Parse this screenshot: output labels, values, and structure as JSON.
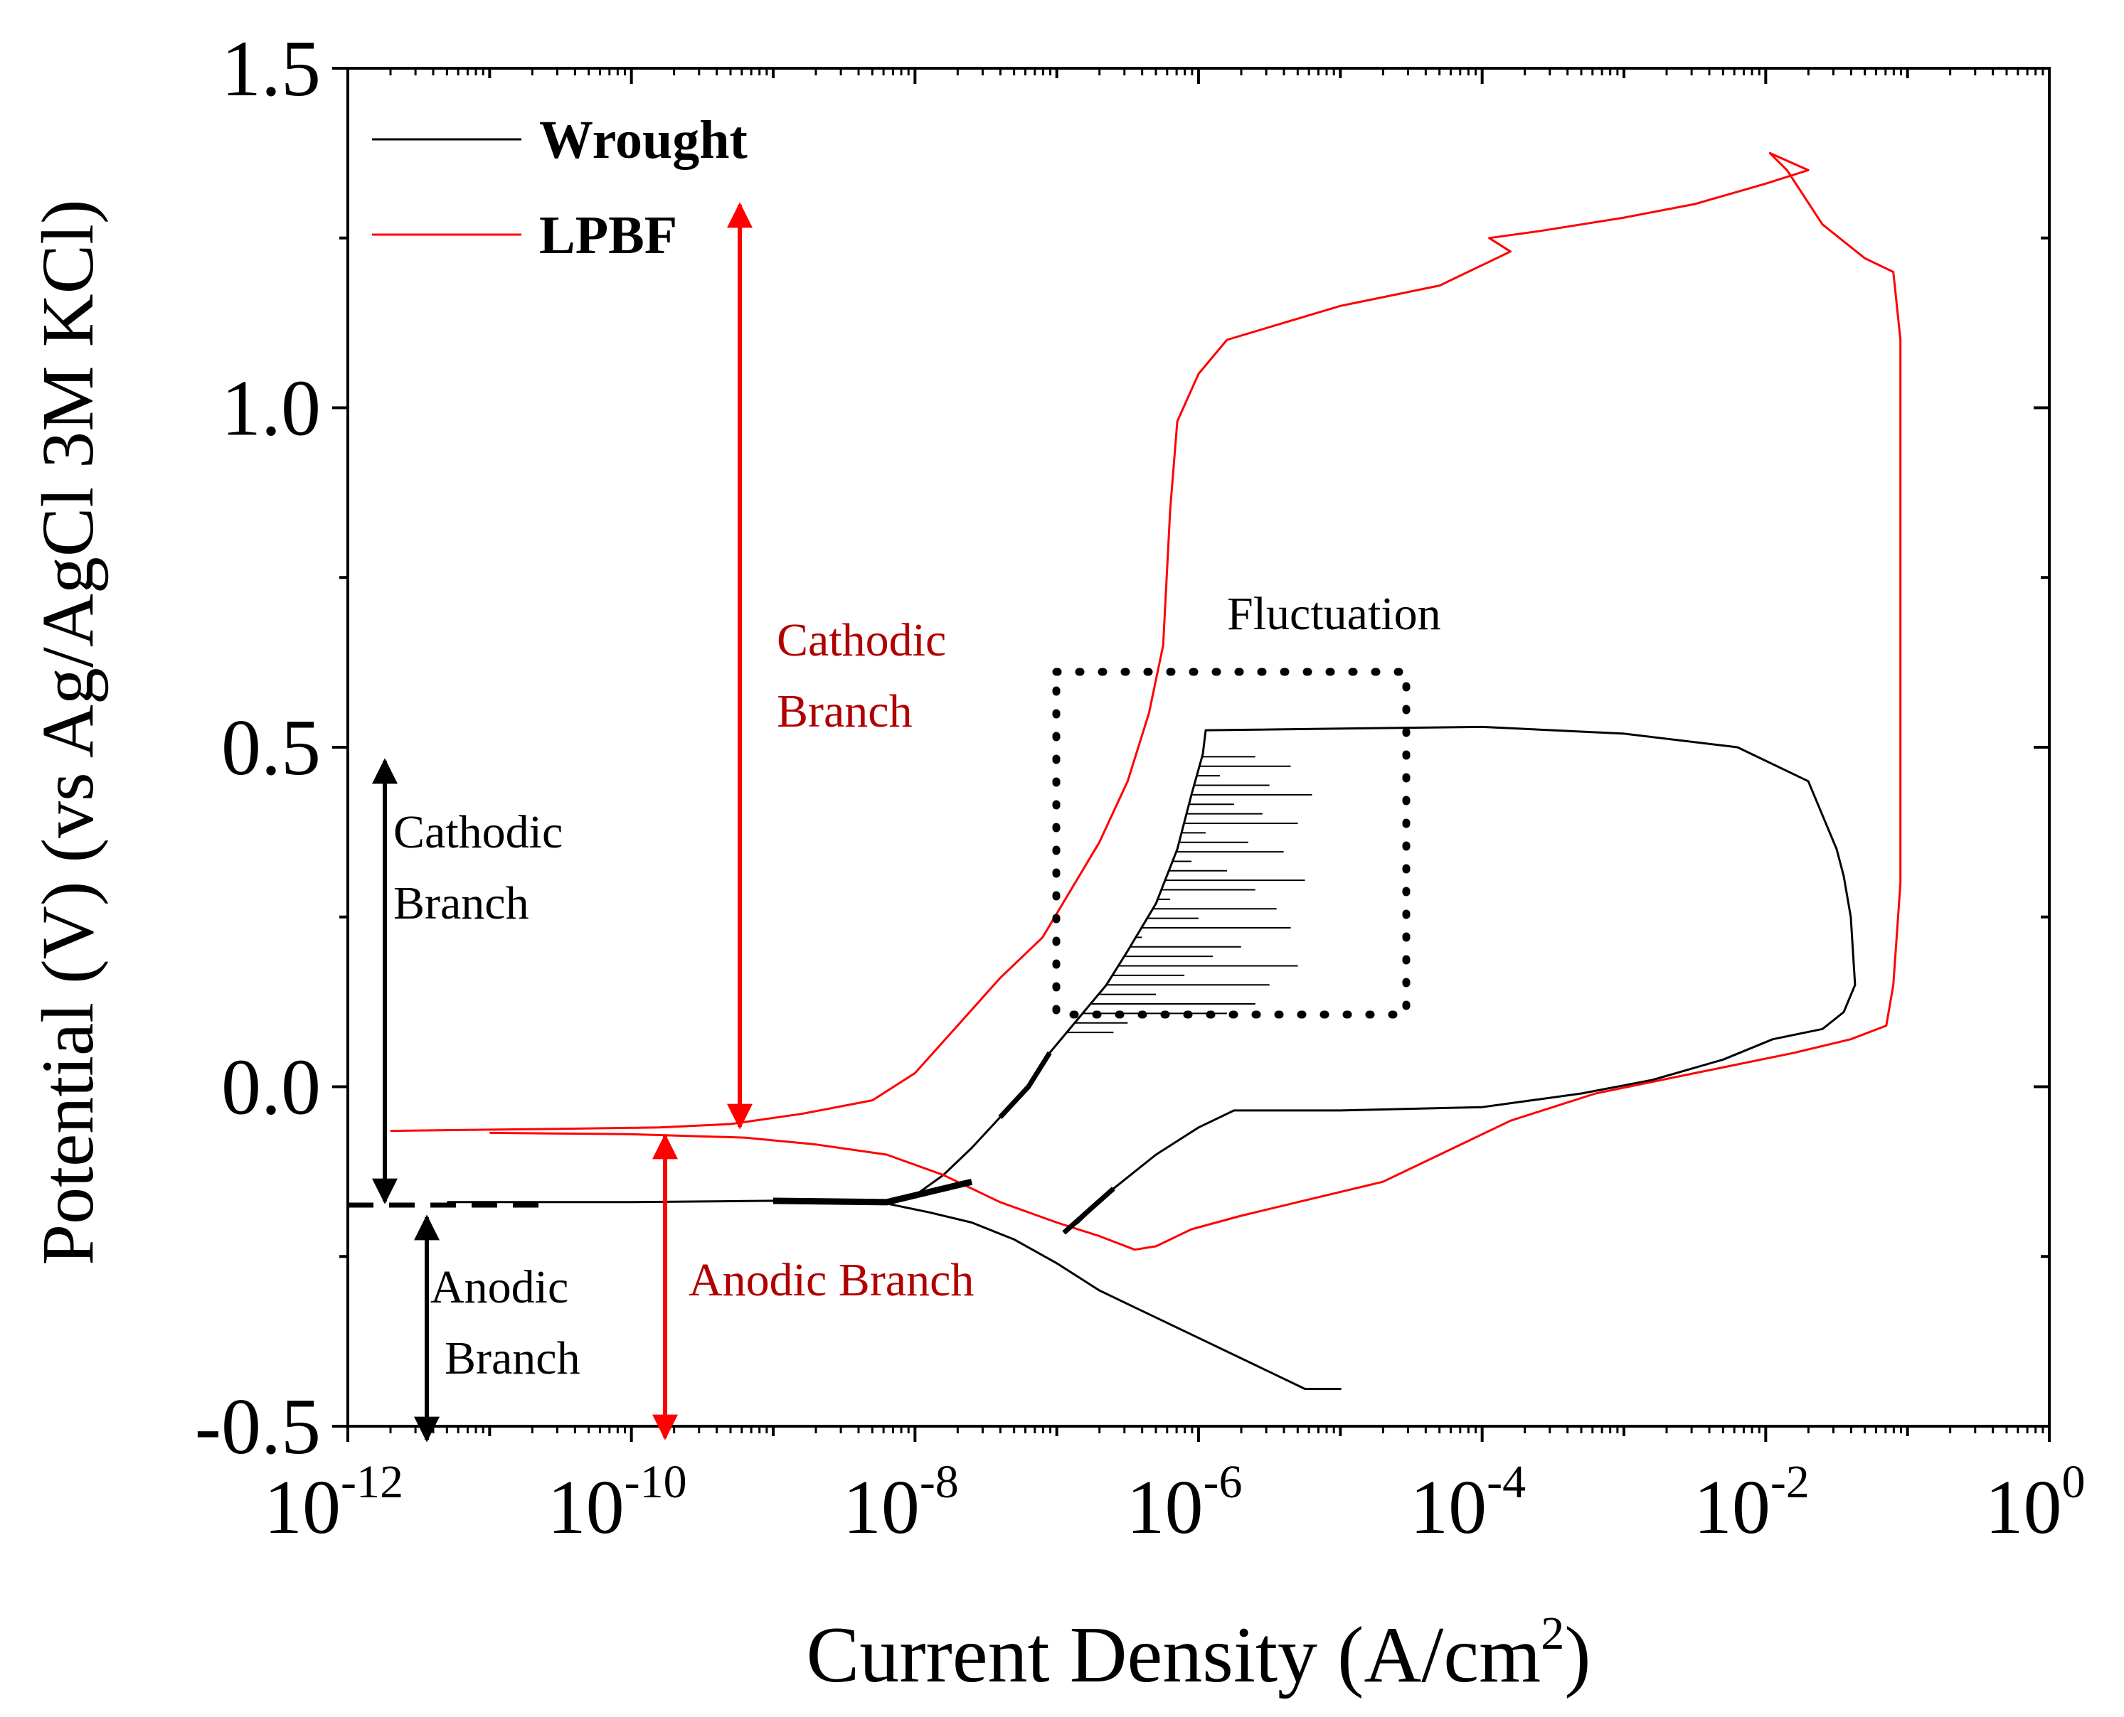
{
  "chart_data": {
    "type": "line",
    "xscale": "log",
    "xlim_exponent": [
      -12,
      0
    ],
    "ylim": [
      -0.5,
      1.5
    ],
    "xlabel": "Current Density (A/cm",
    "xlabel_sup": "2",
    "xlabel_end": ")",
    "ylabel": "Potential (V) (vs Ag/AgCl 3M KCl)",
    "y_ticks": [
      {
        "value": -0.5,
        "label": "-0.5"
      },
      {
        "value": 0.0,
        "label": "0.0"
      },
      {
        "value": 0.5,
        "label": "0.5"
      },
      {
        "value": 1.0,
        "label": "1.0"
      },
      {
        "value": 1.5,
        "label": "1.5"
      }
    ],
    "x_ticks": [
      {
        "exp": -12,
        "base": "10",
        "sup": "-12"
      },
      {
        "exp": -10,
        "base": "10",
        "sup": "-10"
      },
      {
        "exp": -8,
        "base": "10",
        "sup": "-8"
      },
      {
        "exp": -6,
        "base": "10",
        "sup": "-6"
      },
      {
        "exp": -4,
        "base": "10",
        "sup": "-4"
      },
      {
        "exp": -2,
        "base": "10",
        "sup": "-2"
      },
      {
        "exp": 0,
        "base": "10",
        "sup": "0"
      }
    ],
    "colors": {
      "wrought": "#000000",
      "lpbf": "#ff0000",
      "annotation_red": "#b00000"
    },
    "legend": {
      "placement": "top-left",
      "entries": [
        {
          "name": "Wrought",
          "color": "#000000"
        },
        {
          "name": "LPBF",
          "color": "#ff0000"
        }
      ]
    },
    "series": [
      {
        "name": "Wrought",
        "color": "#000000",
        "points": [
          [
            -11.3,
            -0.17
          ],
          [
            -10.0,
            -0.17
          ],
          [
            -9.0,
            -0.168
          ],
          [
            -8.5,
            -0.17
          ],
          [
            -8.2,
            -0.172
          ],
          [
            -7.9,
            -0.185
          ],
          [
            -7.6,
            -0.2
          ],
          [
            -7.3,
            -0.225
          ],
          [
            -7.0,
            -0.26
          ],
          [
            -6.7,
            -0.3
          ],
          [
            -6.4,
            -0.33
          ],
          [
            -6.0,
            -0.37
          ],
          [
            -5.6,
            -0.41
          ],
          [
            -5.25,
            -0.445
          ],
          [
            -5.0,
            -0.445
          ],
          [
            -5.25,
            -0.445
          ],
          [
            -5.6,
            -0.41
          ],
          [
            -6.0,
            -0.37
          ],
          [
            -6.4,
            -0.33
          ],
          [
            -6.7,
            -0.3
          ],
          [
            -7.0,
            -0.26
          ],
          [
            -7.3,
            -0.225
          ],
          [
            -7.6,
            -0.2
          ],
          [
            -7.9,
            -0.185
          ],
          [
            -8.2,
            -0.172
          ],
          [
            -8.0,
            -0.16
          ],
          [
            -7.8,
            -0.13
          ],
          [
            -7.6,
            -0.09
          ],
          [
            -7.4,
            -0.045
          ],
          [
            -7.2,
            0.0
          ],
          [
            -7.05,
            0.05
          ],
          [
            -6.85,
            0.1
          ],
          [
            -6.65,
            0.15
          ],
          [
            -6.5,
            0.2
          ],
          [
            -6.3,
            0.27
          ],
          [
            -6.15,
            0.35
          ],
          [
            -6.05,
            0.43
          ],
          [
            -5.97,
            0.49
          ],
          [
            -5.95,
            0.525
          ],
          [
            -4.0,
            0.53
          ],
          [
            -3.0,
            0.52
          ],
          [
            -2.2,
            0.5
          ],
          [
            -1.7,
            0.45
          ],
          [
            -1.5,
            0.35
          ],
          [
            -1.45,
            0.31
          ],
          [
            -1.4,
            0.25
          ],
          [
            -1.37,
            0.15
          ],
          [
            -1.45,
            0.11
          ],
          [
            -1.6,
            0.085
          ],
          [
            -1.95,
            0.07
          ],
          [
            -2.3,
            0.04
          ],
          [
            -2.8,
            0.01
          ],
          [
            -3.3,
            -0.01
          ],
          [
            -4.0,
            -0.03
          ],
          [
            -5.0,
            -0.035
          ],
          [
            -5.75,
            -0.035
          ],
          [
            -6.0,
            -0.06
          ],
          [
            -6.3,
            -0.1
          ],
          [
            -6.6,
            -0.15
          ],
          [
            -6.85,
            -0.2
          ],
          [
            -6.95,
            -0.215
          ]
        ]
      },
      {
        "name": "LPBF",
        "color": "#ff0000",
        "points": [
          [
            -11.7,
            -0.065
          ],
          [
            -10.5,
            -0.062
          ],
          [
            -9.8,
            -0.06
          ],
          [
            -9.3,
            -0.055
          ],
          [
            -8.8,
            -0.04
          ],
          [
            -8.3,
            -0.02
          ],
          [
            -8.0,
            0.02
          ],
          [
            -7.7,
            0.09
          ],
          [
            -7.4,
            0.16
          ],
          [
            -7.1,
            0.22
          ],
          [
            -6.9,
            0.29
          ],
          [
            -6.7,
            0.36
          ],
          [
            -6.5,
            0.45
          ],
          [
            -6.35,
            0.55
          ],
          [
            -6.25,
            0.65
          ],
          [
            -6.2,
            0.85
          ],
          [
            -6.15,
            0.98
          ],
          [
            -6.0,
            1.05
          ],
          [
            -5.8,
            1.1
          ],
          [
            -5.0,
            1.15
          ],
          [
            -4.3,
            1.18
          ],
          [
            -4.1,
            1.2
          ],
          [
            -3.8,
            1.23
          ],
          [
            -3.95,
            1.25
          ],
          [
            -3.6,
            1.26
          ],
          [
            -3.0,
            1.28
          ],
          [
            -2.5,
            1.3
          ],
          [
            -2.0,
            1.33
          ],
          [
            -1.7,
            1.35
          ],
          [
            -1.97,
            1.375
          ],
          [
            -1.85,
            1.35
          ],
          [
            -1.6,
            1.27
          ],
          [
            -1.3,
            1.22
          ],
          [
            -1.1,
            1.2
          ],
          [
            -1.05,
            1.1
          ],
          [
            -1.05,
            0.9
          ],
          [
            -1.05,
            0.7
          ],
          [
            -1.05,
            0.5
          ],
          [
            -1.05,
            0.3
          ],
          [
            -1.1,
            0.15
          ],
          [
            -1.15,
            0.09
          ],
          [
            -1.4,
            0.07
          ],
          [
            -1.8,
            0.05
          ],
          [
            -2.5,
            0.02
          ],
          [
            -3.2,
            -0.01
          ],
          [
            -3.8,
            -0.05
          ],
          [
            -4.2,
            -0.09
          ],
          [
            -4.7,
            -0.14
          ],
          [
            -5.3,
            -0.17
          ],
          [
            -5.7,
            -0.19
          ],
          [
            -6.05,
            -0.21
          ],
          [
            -6.3,
            -0.235
          ],
          [
            -6.45,
            -0.24
          ],
          [
            -6.7,
            -0.22
          ],
          [
            -7.0,
            -0.2
          ],
          [
            -7.4,
            -0.17
          ],
          [
            -7.8,
            -0.13
          ],
          [
            -8.2,
            -0.1
          ],
          [
            -8.7,
            -0.085
          ],
          [
            -9.2,
            -0.075
          ],
          [
            -10.0,
            -0.07
          ],
          [
            -11.0,
            -0.068
          ]
        ]
      }
    ],
    "annotations": {
      "fluctuation": "Fluctuation",
      "cathodic_red_1": "Cathodic",
      "cathodic_red_2": "Branch",
      "anodic_red": "Anodic Branch",
      "cathodic_black_1": "Cathodic",
      "cathodic_black_2": "Branch",
      "anodic_black_1": "Anodic",
      "anodic_black_2": "Branch"
    }
  }
}
